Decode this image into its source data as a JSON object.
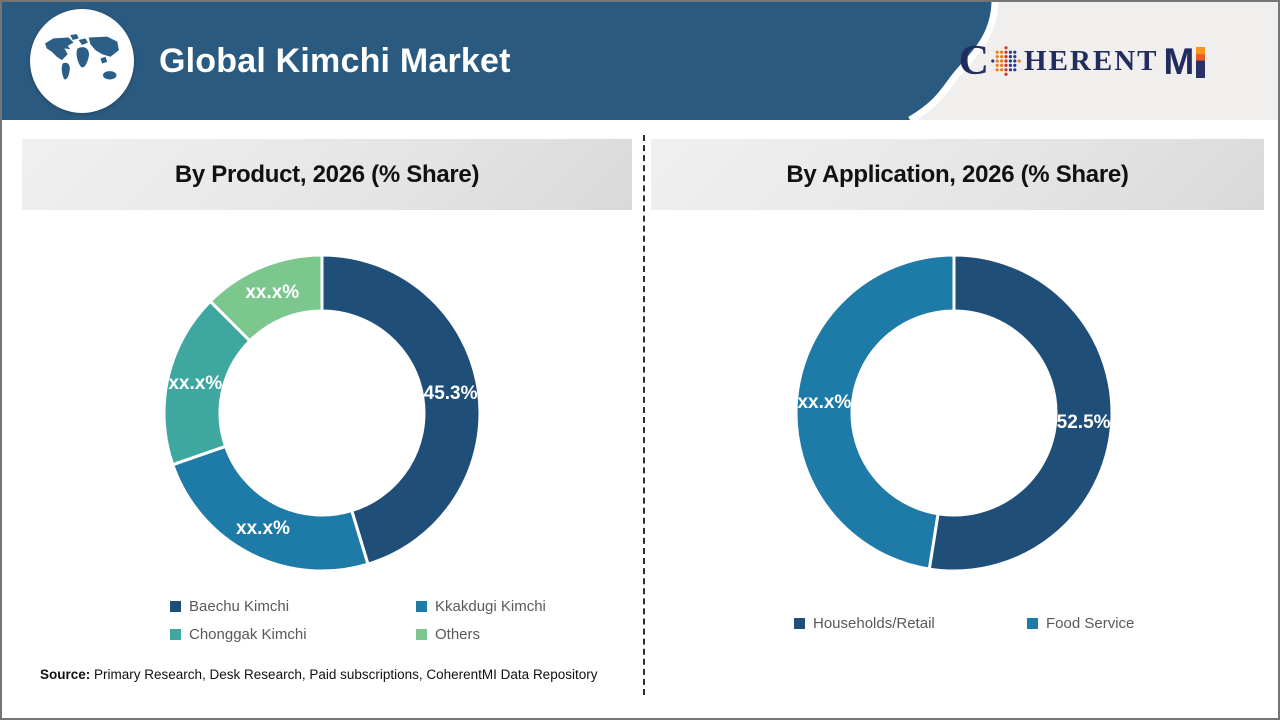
{
  "page": {
    "background": "#ffffff",
    "border_color": "#757575"
  },
  "header": {
    "title": "Global Kimchi Market",
    "band_color": "#2A5A7F",
    "logo_area_color": "#F0EFED",
    "brand": {
      "c": "C",
      "oherent_rest": "HERENT",
      "m": "M",
      "text_color": "#232C5F",
      "i_gradient": [
        "#F7941D",
        "#E65C24",
        "#2B3068"
      ],
      "globe_dot_colors": [
        "#3FA14B",
        "#2B3A8F",
        "#C0392B",
        "#E67E22"
      ]
    }
  },
  "chart_data": [
    {
      "type": "pie",
      "donut": true,
      "title": "By Product, 2026 (% Share)",
      "start_angle_deg": 0,
      "direction": "clockwise",
      "outer_radius": 158,
      "inner_radius": 102,
      "legend_position": "bottom",
      "segments": [
        {
          "label": "Baechu Kimchi",
          "display_value": "45.3%",
          "value": 45.3,
          "color": "#1F4E79"
        },
        {
          "label": "Kkakdugi Kimchi",
          "display_value": "xx.x%",
          "value": 24.4,
          "color": "#1E7AA6"
        },
        {
          "label": "Chonggak Kimchi",
          "display_value": "xx.x%",
          "value": 17.8,
          "color": "#3EA8A0"
        },
        {
          "label": "Others",
          "display_value": "xx.x%",
          "value": 12.5,
          "color": "#7CC78E"
        }
      ]
    },
    {
      "type": "pie",
      "donut": true,
      "title": "By Application, 2026 (% Share)",
      "start_angle_deg": 0,
      "direction": "clockwise",
      "outer_radius": 158,
      "inner_radius": 102,
      "legend_position": "bottom",
      "segments": [
        {
          "label": "Households/Retail",
          "display_value": "52.5%",
          "value": 52.5,
          "color": "#1F4E79"
        },
        {
          "label": "Food Service",
          "display_value": "xx.x%",
          "value": 47.5,
          "color": "#1E7AA6"
        }
      ]
    }
  ],
  "source": {
    "label": "Source:",
    "text": " Primary Research, Desk Research, Paid subscriptions, CoherentMI Data Repository"
  }
}
